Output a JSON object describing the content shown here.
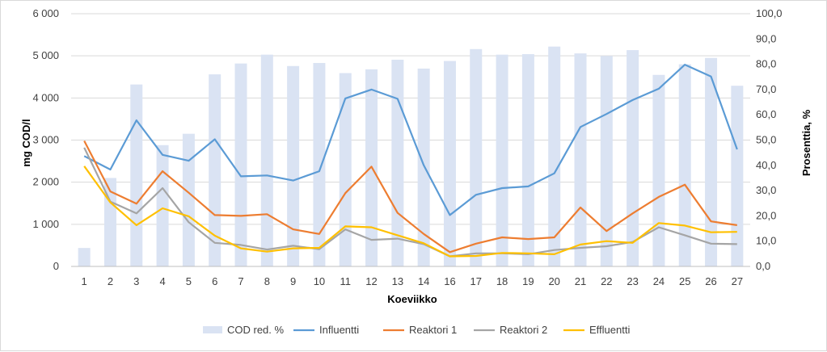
{
  "chart_data": {
    "type": "bar",
    "categories": [
      "1",
      "2",
      "3",
      "4",
      "5",
      "6",
      "7",
      "8",
      "9",
      "10",
      "11",
      "12",
      "13",
      "14",
      "16",
      "17",
      "18",
      "19",
      "20",
      "21",
      "22",
      "23",
      "24",
      "25",
      "26",
      "27"
    ],
    "xlabel": "Koeviikko",
    "ylabel": "mg COD/l",
    "y2label": "Prosenttia, %",
    "ylim": [
      0,
      6000
    ],
    "y2lim": [
      0,
      100
    ],
    "yticks": [
      "0",
      "1 000",
      "2 000",
      "3 000",
      "4 000",
      "5 000",
      "6 000"
    ],
    "y2ticks": [
      "0,0",
      "10,0",
      "20,0",
      "30,0",
      "40,0",
      "50,0",
      "60,0",
      "70,0",
      "80,0",
      "90,0",
      "100,0"
    ],
    "grid": true,
    "legend_position": "bottom",
    "bar_series": {
      "name": "COD red. %",
      "axis": "right",
      "color": "#dae3f3",
      "values": [
        7.3,
        35,
        72,
        48,
        52.5,
        76,
        80.3,
        83.8,
        79.3,
        80.5,
        76.5,
        78,
        81.8,
        78.3,
        81.3,
        86,
        83.8,
        84,
        87,
        84.3,
        83.3,
        85.6,
        75.8,
        80,
        82.5,
        71.5
      ]
    },
    "series": [
      {
        "name": "Influentti",
        "color": "#5b9bd5",
        "values": [
          2620,
          2300,
          3470,
          2650,
          2510,
          3020,
          2140,
          2160,
          2040,
          2260,
          3990,
          4200,
          3980,
          2400,
          1220,
          1700,
          1860,
          1900,
          2210,
          3310,
          3620,
          3950,
          4220,
          4790,
          4510,
          2780
        ]
      },
      {
        "name": "Reaktori 1",
        "color": "#ed7d31",
        "values": [
          2980,
          1780,
          1490,
          2260,
          1750,
          1220,
          1200,
          1240,
          880,
          770,
          1740,
          2370,
          1270,
          770,
          340,
          540,
          690,
          650,
          690,
          1400,
          840,
          1260,
          1650,
          1940,
          1070,
          980
        ]
      },
      {
        "name": "Reaktori 2",
        "color": "#a5a5a5",
        "values": [
          2820,
          1540,
          1260,
          1860,
          1050,
          560,
          510,
          400,
          490,
          410,
          880,
          630,
          660,
          530,
          240,
          310,
          310,
          290,
          390,
          440,
          480,
          580,
          930,
          740,
          540,
          530
        ]
      },
      {
        "name": "Effluentti",
        "color": "#ffc000",
        "values": [
          2380,
          1520,
          980,
          1380,
          1190,
          730,
          430,
          350,
          430,
          440,
          950,
          930,
          740,
          550,
          240,
          250,
          320,
          310,
          290,
          520,
          600,
          560,
          1030,
          970,
          810,
          820
        ]
      }
    ]
  }
}
